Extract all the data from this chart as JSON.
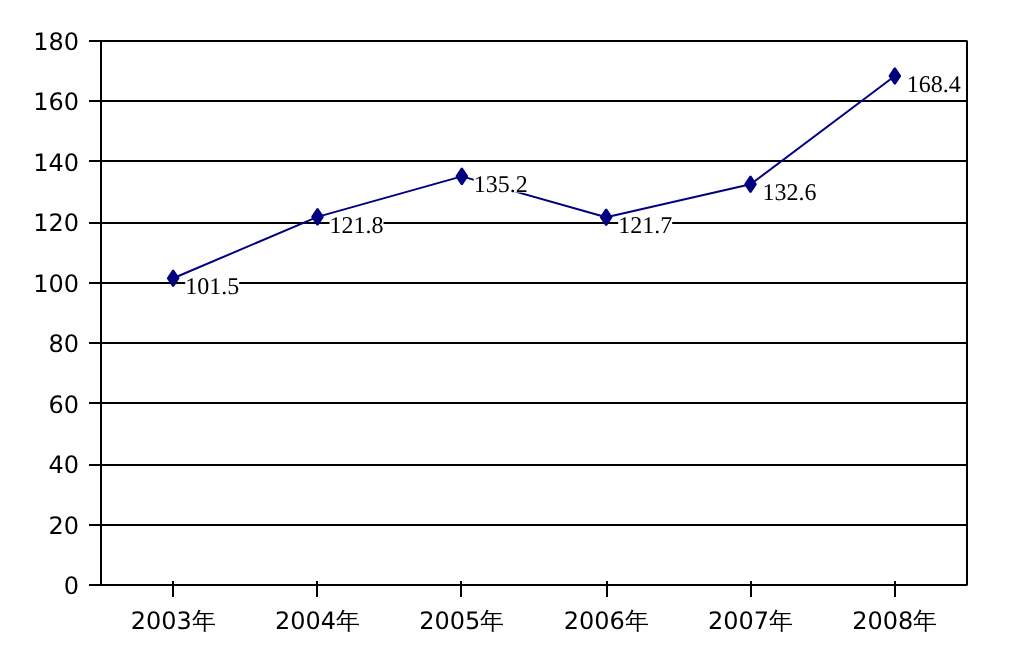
{
  "chart_data": {
    "type": "line",
    "categories": [
      "2003年",
      "2004年",
      "2005年",
      "2006年",
      "2007年",
      "2008年"
    ],
    "series": [
      {
        "color": "#000080",
        "values": [
          101.5,
          121.8,
          135.2,
          121.7,
          132.6,
          168.4
        ]
      }
    ],
    "ylim": [
      0,
      180
    ],
    "yticks": [
      0,
      20,
      40,
      60,
      80,
      100,
      120,
      140,
      160,
      180
    ],
    "grid": "y",
    "marker": "diamond",
    "data_labels": true
  }
}
